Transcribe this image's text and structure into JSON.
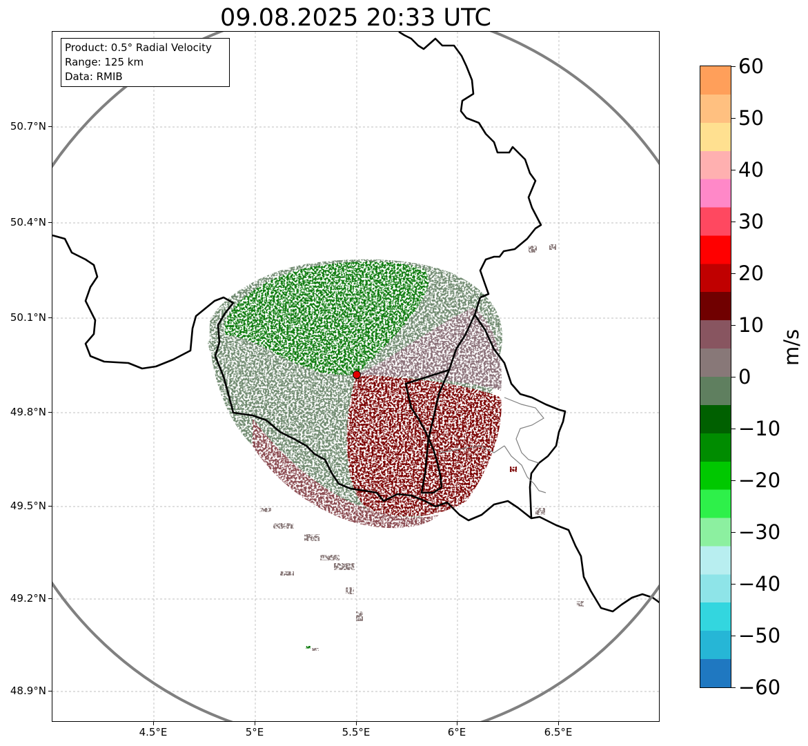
{
  "title": "09.08.2025 20:33 UTC",
  "info": {
    "product": "Product: 0.5° Radial Velocity",
    "range": "Range: 125 km",
    "data": "Data: RMIB"
  },
  "axes": {
    "lat_labels": [
      "50.7°N",
      "50.4°N",
      "50.1°N",
      "49.8°N",
      "49.5°N",
      "49.2°N",
      "48.9°N"
    ],
    "lon_labels": [
      "4.5°E",
      "5°E",
      "5.5°E",
      "6°E",
      "6.5°E"
    ]
  },
  "colorbar": {
    "unit": "m/s",
    "ticks": [
      "60",
      "50",
      "40",
      "30",
      "20",
      "10",
      "0",
      "−10",
      "−20",
      "−30",
      "−40",
      "−50",
      "−60"
    ],
    "range": [
      -60,
      60
    ],
    "colors": [
      "#1f78c1",
      "#26b6d6",
      "#33d6df",
      "#8ee4e8",
      "#b8eef0",
      "#8cf0a0",
      "#2ef04a",
      "#00c800",
      "#008c00",
      "#006000",
      "#5f7f5f",
      "#887878",
      "#885560",
      "#700000",
      "#c00000",
      "#ff0000",
      "#ff4860",
      "#ff88c8",
      "#ffb0b0",
      "#ffe090",
      "#ffc080",
      "#ff9f5a"
    ]
  },
  "radar_site": {
    "lat": 49.91,
    "lon": 5.5,
    "color": "#e00000"
  },
  "colors": {
    "border": "#000000",
    "range_ring": "#808080",
    "grid": "#aaaaaa",
    "positive_velocity": "#7a0000",
    "negative_velocity": "#0a7a0a",
    "near_zero": "#6f8a6f"
  }
}
